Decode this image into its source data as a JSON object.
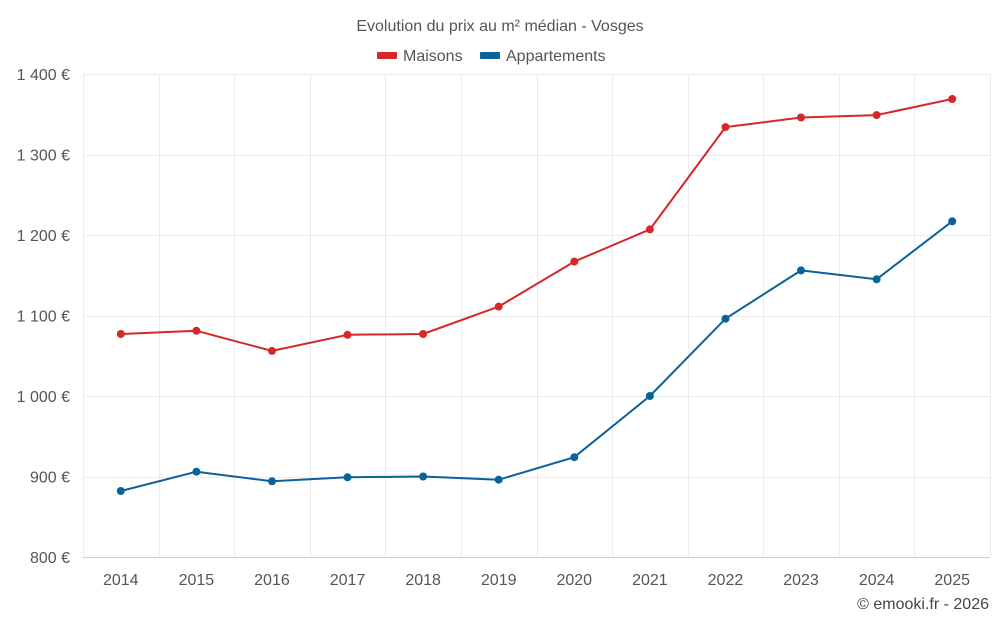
{
  "chart_data": {
    "type": "line",
    "title": "Evolution du prix au m² médian - Vosges",
    "categories": [
      "2014",
      "2015",
      "2016",
      "2017",
      "2018",
      "2019",
      "2020",
      "2021",
      "2022",
      "2023",
      "2024",
      "2025"
    ],
    "series": [
      {
        "name": "Maisons",
        "color": "#d62828",
        "values": [
          1077,
          1081,
          1056,
          1076,
          1077,
          1111,
          1167,
          1207,
          1334,
          1346,
          1349,
          1369
        ]
      },
      {
        "name": "Appartements",
        "color": "#0b6299",
        "values": [
          882,
          906,
          894,
          899,
          900,
          896,
          924,
          1000,
          1096,
          1156,
          1145,
          1217
        ]
      }
    ],
    "y_ticks": [
      800,
      900,
      1000,
      1100,
      1200,
      1300,
      1400
    ],
    "y_tick_labels": [
      "800 €",
      "900 €",
      "1 000 €",
      "1 100 €",
      "1 200 €",
      "1 300 €",
      "1 400 €"
    ],
    "ylim": [
      800,
      1400
    ],
    "xlabel": "",
    "ylabel": "",
    "grid": true,
    "legend": "top-center"
  },
  "footer": {
    "credit": "© emooki.fr - 2026"
  }
}
